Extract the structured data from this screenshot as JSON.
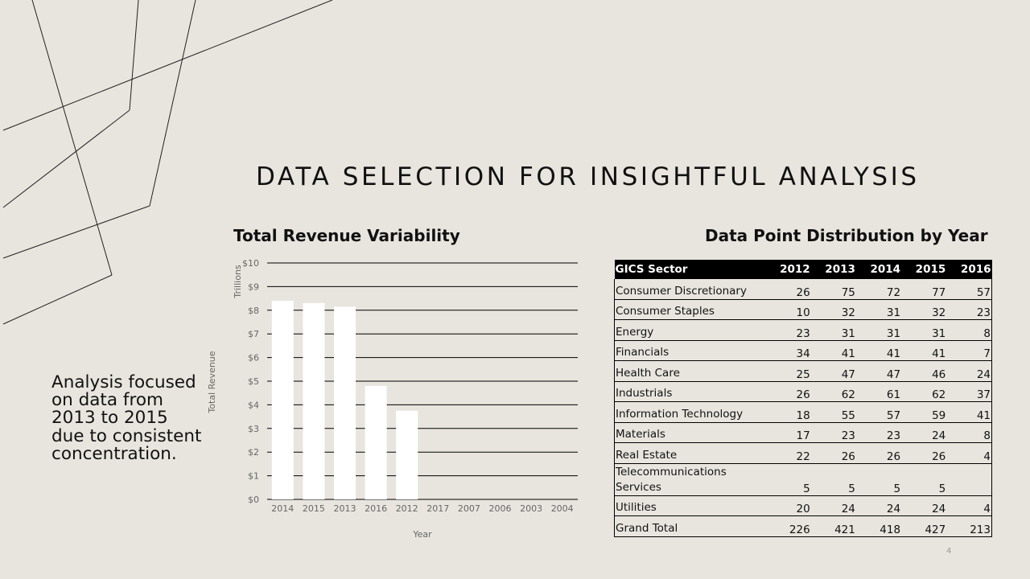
{
  "title": "DATA SELECTION FOR INSIGHTFUL ANALYSIS",
  "chart_title": "Total Revenue Variability",
  "table_title": "Data Point Distribution by Year",
  "side_note": "Analysis focused on data from 2013 to 2015 due to consistent concentration.",
  "page_number": "4",
  "chart_data": {
    "type": "bar",
    "categories": [
      "2014",
      "2015",
      "2013",
      "2016",
      "2012",
      "2017",
      "2007",
      "2006",
      "2003",
      "2004"
    ],
    "values": [
      8.4,
      8.3,
      8.15,
      4.8,
      3.75,
      0,
      0,
      0,
      0,
      0
    ],
    "xlabel": "Year",
    "ylabel": "Total Revenue",
    "unit_label": "Trillions",
    "yticks": [
      "$0",
      "$1",
      "$2",
      "$3",
      "$4",
      "$5",
      "$6",
      "$7",
      "$8",
      "$9",
      "$10"
    ],
    "ylim": [
      0,
      10
    ],
    "grid": true,
    "legend": "none",
    "bar_color": "#ffffff"
  },
  "table": {
    "columns": [
      "GICS Sector",
      "2012",
      "2013",
      "2014",
      "2015",
      "2016"
    ],
    "rows": [
      [
        "Consumer Discretionary",
        "26",
        "75",
        "72",
        "77",
        "57"
      ],
      [
        "Consumer Staples",
        "10",
        "32",
        "31",
        "32",
        "23"
      ],
      [
        "Energy",
        "23",
        "31",
        "31",
        "31",
        "8"
      ],
      [
        "Financials",
        "34",
        "41",
        "41",
        "41",
        "7"
      ],
      [
        "Health Care",
        "25",
        "47",
        "47",
        "46",
        "24"
      ],
      [
        "Industrials",
        "26",
        "62",
        "61",
        "62",
        "37"
      ],
      [
        "Information Technology",
        "18",
        "55",
        "57",
        "59",
        "41"
      ],
      [
        "Materials",
        "17",
        "23",
        "23",
        "24",
        "8"
      ],
      [
        "Real Estate",
        "22",
        "26",
        "26",
        "26",
        "4"
      ],
      [
        "Telecommunications Services",
        "5",
        "5",
        "5",
        "5",
        ""
      ],
      [
        "Utilities",
        "20",
        "24",
        "24",
        "24",
        "4"
      ],
      [
        "Grand Total",
        "226",
        "421",
        "418",
        "427",
        "213"
      ]
    ]
  },
  "colors": {
    "background": "#e8e5df",
    "header_bg": "#000000",
    "text": "#111111"
  }
}
